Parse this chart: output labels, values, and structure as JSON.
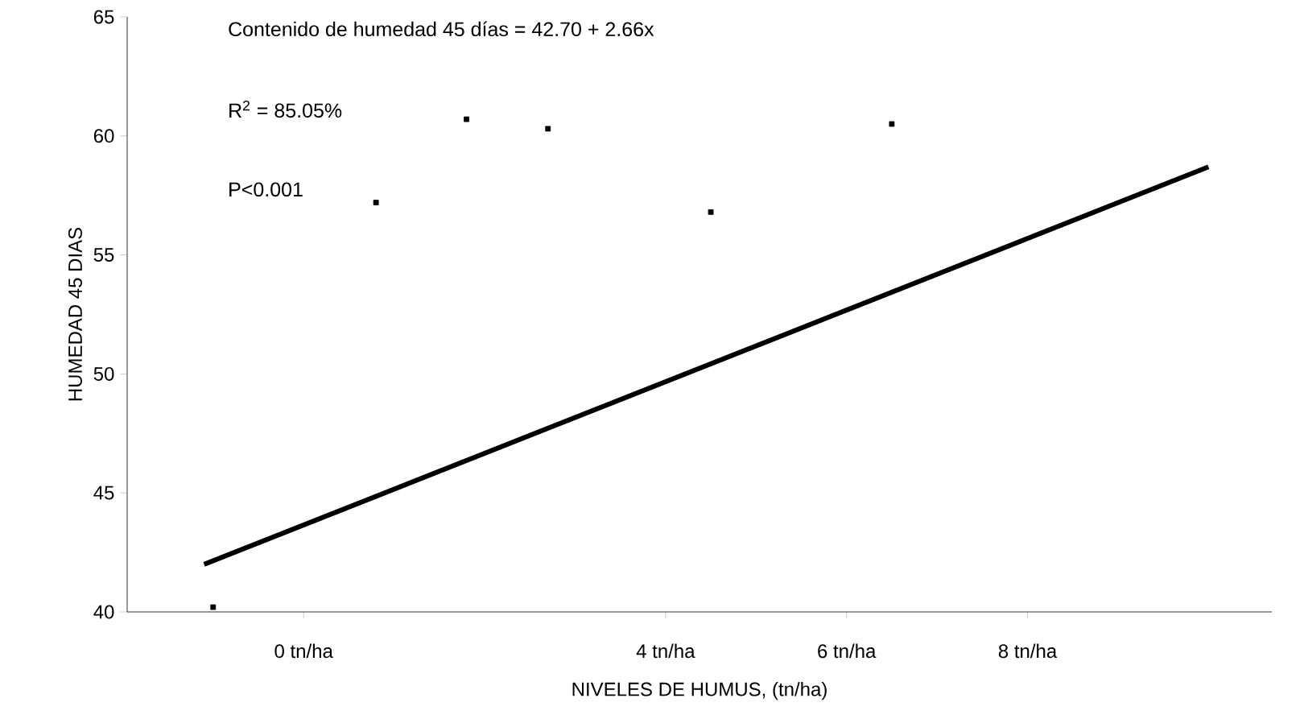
{
  "chart_data": {
    "type": "scatter",
    "xlabel": "NIVELES DE HUMUS, (tn/ha)",
    "ylabel": "HUMEDAD 45 DIAS",
    "annotations": [
      "Contenido de humedad 45 días = 42.70 + 2.66x",
      "R$^{2}$ = 85.05%",
      "P<0.001"
    ],
    "xlim": [
      -1.95,
      10.7
    ],
    "xticks": [
      {
        "value": 0,
        "label": "0 tn/ha"
      },
      {
        "value": 4,
        "label": "4 tn/ha"
      },
      {
        "value": 6,
        "label": "6 tn/ha"
      },
      {
        "value": 8,
        "label": "8 tn/ha"
      }
    ],
    "ylim": [
      40,
      65
    ],
    "yticks": [
      40,
      45,
      50,
      55,
      60,
      65
    ],
    "grid": false,
    "marker": "square",
    "series": [
      {
        "color": "#000000",
        "x": [
          -1.0,
          0.8,
          1.8,
          2.7,
          4.5,
          6.5
        ],
        "values": [
          40.2,
          57.2,
          60.7,
          60.3,
          56.8,
          60.5
        ]
      },
      {
        "type": "line",
        "marker": "none",
        "color": "#000000",
        "x": [
          -1.1,
          10.0
        ],
        "values": [
          42.0,
          58.7
        ]
      }
    ]
  }
}
